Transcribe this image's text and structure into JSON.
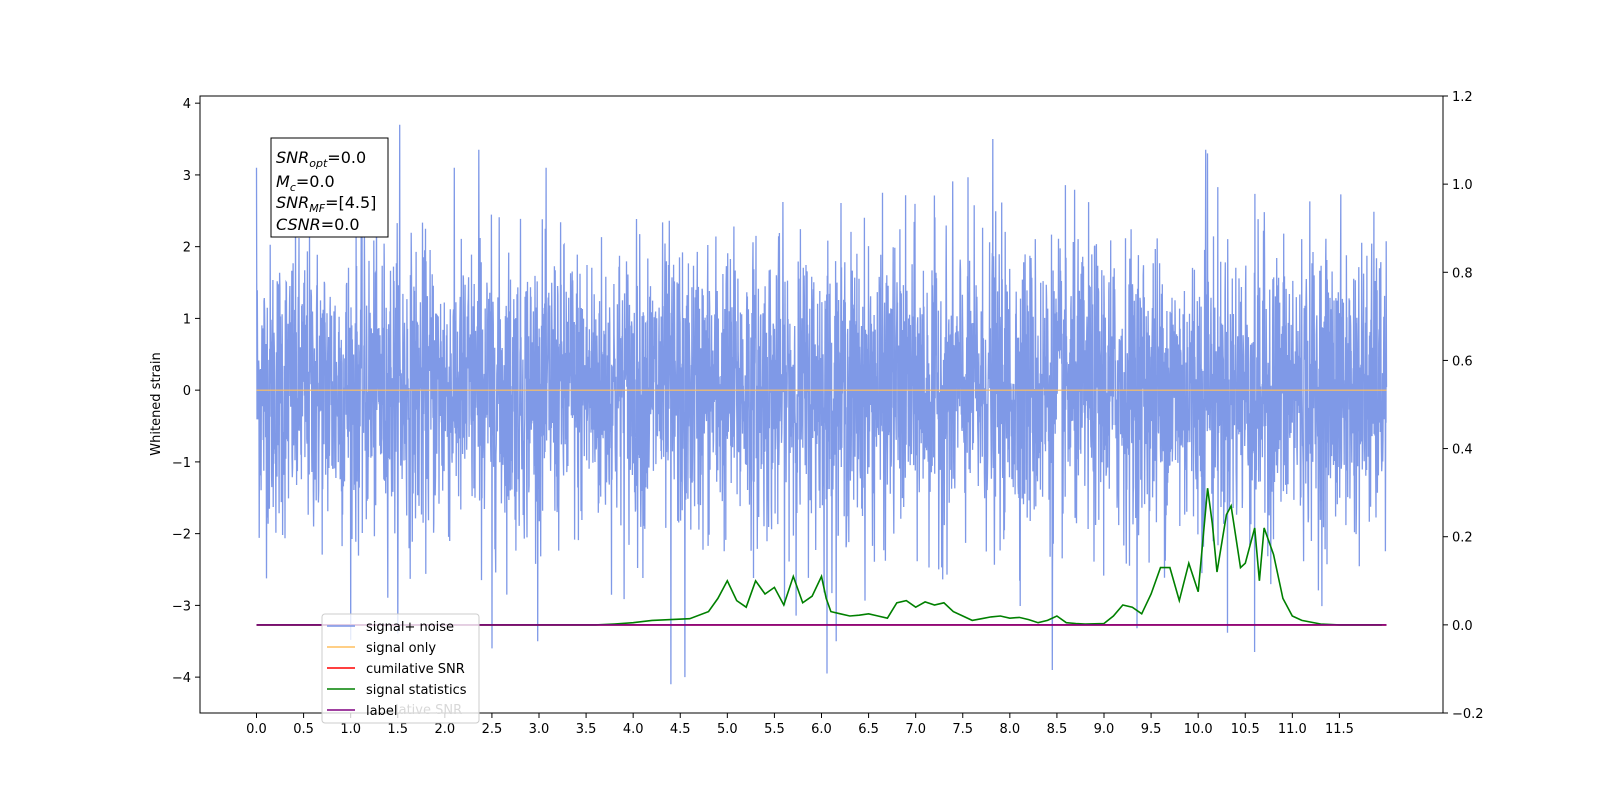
{
  "chart_data": {
    "type": "line",
    "title": "",
    "xlabel": "",
    "ylabel": "Whitened strain",
    "xlim": [
      -0.6,
      12.6
    ],
    "ylim": [
      -4.5,
      4.1
    ],
    "y2lim": [
      -0.2,
      1.2
    ],
    "x_ticks": [
      "0.0",
      "0.5",
      "1.0",
      "1.5",
      "2.0",
      "2.5",
      "3.0",
      "3.5",
      "4.0",
      "4.5",
      "5.0",
      "5.5",
      "6.0",
      "6.5",
      "7.0",
      "7.5",
      "8.0",
      "8.5",
      "9.0",
      "9.5",
      "10.0",
      "10.5",
      "11.0",
      "11.5"
    ],
    "y_ticks": [
      "4",
      "3",
      "2",
      "1",
      "0",
      "−1",
      "−2",
      "−3",
      "−4"
    ],
    "y2_ticks": [
      "1.2",
      "1.0",
      "0.8",
      "0.6",
      "0.4",
      "0.2",
      "0.0",
      "−0.2"
    ],
    "grid": false,
    "legend_position": "lower-left",
    "annotation": {
      "lines": [
        {
          "sym": "SNR",
          "sub": "opt",
          "val": "=0.0"
        },
        {
          "sym": "M",
          "sub": "c",
          "val": "=0.0"
        },
        {
          "sym": "SNR",
          "sub": "MF",
          "val": "=[4.5]"
        },
        {
          "sym": "CSNR",
          "sub": "",
          "val": "=0.0"
        }
      ]
    },
    "noise_trace": {
      "name": "signal+ noise",
      "x_range": [
        0.0,
        12.0
      ],
      "typical_envelope": [
        -2.2,
        2.2
      ],
      "max": 3.7,
      "min": -4.1,
      "spikes": [
        [
          0.0,
          3.1
        ],
        [
          1.52,
          3.7
        ],
        [
          7.82,
          3.5
        ],
        [
          2.36,
          3.35
        ],
        [
          10.08,
          3.35
        ],
        [
          10.1,
          3.3
        ],
        [
          4.4,
          -4.1
        ],
        [
          6.06,
          -3.95
        ],
        [
          8.45,
          -3.9
        ],
        [
          10.6,
          -3.65
        ],
        [
          2.5,
          -3.6
        ],
        [
          4.55,
          -4.0
        ]
      ],
      "color": "#7893e6"
    },
    "series": [
      {
        "name": "signal only",
        "color": "#ffbf5f",
        "axis": "left",
        "x": [
          0.0,
          12.0
        ],
        "y": [
          0.0,
          0.0
        ]
      },
      {
        "name": "cumilative SNR",
        "color": "#ff0000",
        "axis": "right",
        "x": [
          0.0,
          12.0
        ],
        "y": [
          0.0,
          0.0
        ]
      },
      {
        "name": "signal statistics",
        "color": "#008000",
        "axis": "right",
        "x": [
          0.0,
          1.0,
          2.0,
          3.0,
          3.6,
          3.8,
          4.0,
          4.2,
          4.4,
          4.6,
          4.8,
          4.9,
          5.0,
          5.1,
          5.2,
          5.3,
          5.4,
          5.5,
          5.6,
          5.7,
          5.8,
          5.9,
          6.0,
          6.05,
          6.1,
          6.2,
          6.3,
          6.4,
          6.5,
          6.6,
          6.7,
          6.8,
          6.9,
          7.0,
          7.1,
          7.2,
          7.3,
          7.4,
          7.5,
          7.6,
          7.7,
          7.8,
          7.9,
          8.0,
          8.1,
          8.2,
          8.3,
          8.4,
          8.5,
          8.6,
          8.7,
          8.8,
          9.0,
          9.1,
          9.2,
          9.3,
          9.4,
          9.5,
          9.6,
          9.7,
          9.8,
          9.9,
          10.0,
          10.1,
          10.15,
          10.2,
          10.3,
          10.35,
          10.45,
          10.5,
          10.6,
          10.65,
          10.7,
          10.8,
          10.9,
          11.0,
          11.1,
          11.3,
          11.5,
          11.7,
          11.95
        ],
        "y": [
          0.0,
          0.0,
          0.0,
          0.0,
          0.0,
          0.002,
          0.005,
          0.01,
          0.012,
          0.014,
          0.03,
          0.06,
          0.1,
          0.055,
          0.04,
          0.1,
          0.07,
          0.085,
          0.045,
          0.11,
          0.05,
          0.065,
          0.11,
          0.06,
          0.03,
          0.025,
          0.02,
          0.022,
          0.025,
          0.02,
          0.015,
          0.05,
          0.055,
          0.04,
          0.052,
          0.045,
          0.05,
          0.03,
          0.02,
          0.01,
          0.014,
          0.018,
          0.02,
          0.015,
          0.017,
          0.012,
          0.005,
          0.01,
          0.02,
          0.005,
          0.003,
          0.002,
          0.003,
          0.02,
          0.045,
          0.04,
          0.025,
          0.07,
          0.13,
          0.13,
          0.055,
          0.14,
          0.075,
          0.31,
          0.23,
          0.12,
          0.25,
          0.27,
          0.13,
          0.14,
          0.22,
          0.1,
          0.22,
          0.16,
          0.06,
          0.02,
          0.01,
          0.002,
          0.0,
          0.0,
          0.0
        ]
      },
      {
        "name": "label",
        "color": "#800080",
        "axis": "right",
        "x": [
          0.0,
          12.0
        ],
        "y": [
          0.0,
          0.0
        ]
      }
    ],
    "legend": [
      "signal+ noise",
      "signal only",
      "cumilative SNR",
      "signal statistics",
      "label"
    ],
    "legend_residual_text": "lative SNR"
  }
}
